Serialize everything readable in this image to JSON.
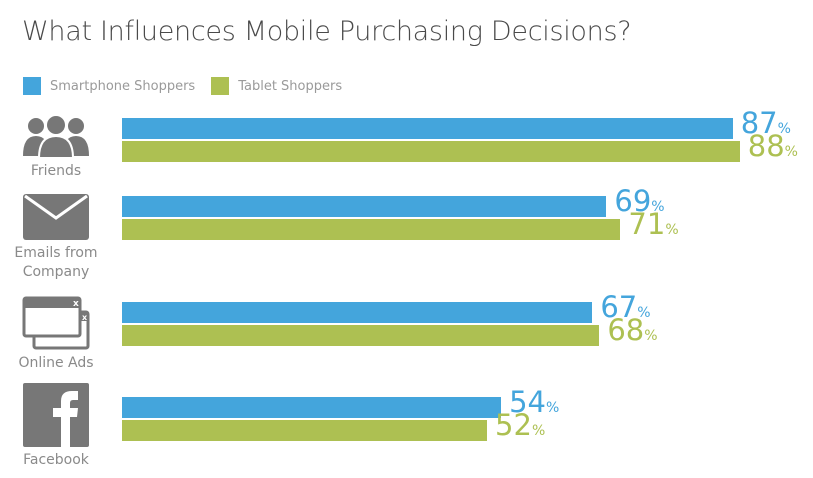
{
  "chart_data": {
    "type": "bar",
    "orientation": "horizontal",
    "title": "What Influences Mobile Purchasing Decisions?",
    "categories": [
      "Friends",
      "Emails from Company",
      "Online Ads",
      "Facebook"
    ],
    "category_icons": [
      "people-icon",
      "envelope-icon",
      "browser-windows-icon",
      "facebook-icon"
    ],
    "series": [
      {
        "name": "Smartphone Shoppers",
        "color": "#44a5dc",
        "values": [
          87,
          69,
          67,
          54
        ]
      },
      {
        "name": "Tablet Shoppers",
        "color": "#adc052",
        "values": [
          88,
          71,
          68,
          52
        ]
      }
    ],
    "value_suffix": "%",
    "xlim": [
      0,
      100
    ],
    "grid": false,
    "legend": "top-left"
  }
}
